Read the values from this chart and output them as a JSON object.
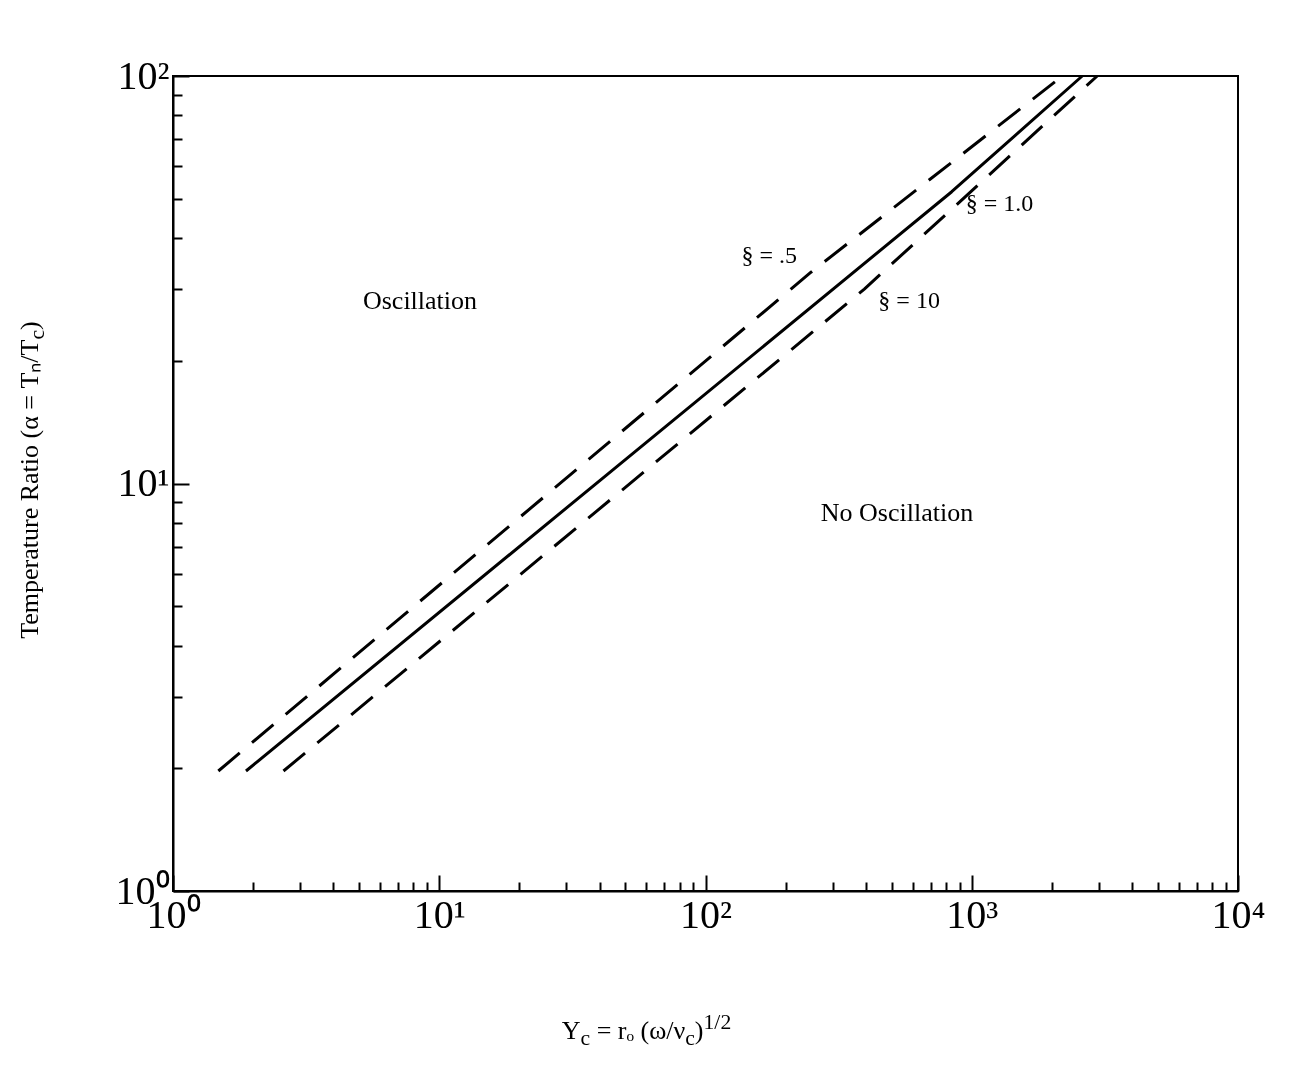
{
  "chart_data": {
    "type": "line",
    "xlabel": "Y$_{c}$ = rₒ (ω/ν$_{c}$)$^{1/2}$",
    "ylabel": "Temperature Ratio (α = Tₙ/T$_{c}$)",
    "log": "xy",
    "grid": false,
    "marker": "none",
    "xlim": [
      1,
      10000
    ],
    "ylim": [
      1,
      100
    ],
    "xticks": [
      {
        "value": 1,
        "label": "10⁰"
      },
      {
        "value": 2,
        "label": null
      },
      {
        "value": 3,
        "label": null
      },
      {
        "value": 4,
        "label": null
      },
      {
        "value": 5,
        "label": null
      },
      {
        "value": 6,
        "label": null
      },
      {
        "value": 7,
        "label": null
      },
      {
        "value": 8,
        "label": null
      },
      {
        "value": 9,
        "label": null
      },
      {
        "value": 10,
        "label": "10¹"
      },
      {
        "value": 20,
        "label": null
      },
      {
        "value": 30,
        "label": null
      },
      {
        "value": 40,
        "label": null
      },
      {
        "value": 50,
        "label": null
      },
      {
        "value": 60,
        "label": null
      },
      {
        "value": 70,
        "label": null
      },
      {
        "value": 80,
        "label": null
      },
      {
        "value": 90,
        "label": null
      },
      {
        "value": 100,
        "label": "10²"
      },
      {
        "value": 200,
        "label": null
      },
      {
        "value": 300,
        "label": null
      },
      {
        "value": 400,
        "label": null
      },
      {
        "value": 500,
        "label": null
      },
      {
        "value": 600,
        "label": null
      },
      {
        "value": 700,
        "label": null
      },
      {
        "value": 800,
        "label": null
      },
      {
        "value": 900,
        "label": null
      },
      {
        "value": 1000,
        "label": "10³"
      },
      {
        "value": 2000,
        "label": null
      },
      {
        "value": 3000,
        "label": null
      },
      {
        "value": 4000,
        "label": null
      },
      {
        "value": 5000,
        "label": null
      },
      {
        "value": 6000,
        "label": null
      },
      {
        "value": 7000,
        "label": null
      },
      {
        "value": 8000,
        "label": null
      },
      {
        "value": 9000,
        "label": null
      },
      {
        "value": 10000,
        "label": "10⁴"
      }
    ],
    "yticks": [
      {
        "value": 1,
        "label": "10⁰"
      },
      {
        "value": 2,
        "label": null
      },
      {
        "value": 3,
        "label": null
      },
      {
        "value": 4,
        "label": null
      },
      {
        "value": 5,
        "label": null
      },
      {
        "value": 6,
        "label": null
      },
      {
        "value": 7,
        "label": null
      },
      {
        "value": 8,
        "label": null
      },
      {
        "value": 9,
        "label": null
      },
      {
        "value": 10,
        "label": "10¹"
      },
      {
        "value": 20,
        "label": null
      },
      {
        "value": 30,
        "label": null
      },
      {
        "value": 40,
        "label": null
      },
      {
        "value": 50,
        "label": null
      },
      {
        "value": 60,
        "label": null
      },
      {
        "value": 70,
        "label": null
      },
      {
        "value": 80,
        "label": null
      },
      {
        "value": 90,
        "label": null
      },
      {
        "value": 100,
        "label": "10²"
      }
    ],
    "series": [
      {
        "name": "§ = .5",
        "color": "#000000",
        "line_style": "dashed",
        "x": [
          1.48,
          249,
          2190
        ],
        "values": [
          1.97,
          33,
          100
        ]
      },
      {
        "name": "§ = 1.0",
        "color": "#000000",
        "line_style": "solid",
        "x": [
          1.88,
          841,
          2600
        ],
        "values": [
          1.97,
          52,
          100
        ]
      },
      {
        "name": "§ = 10",
        "color": "#000000",
        "line_style": "dashed",
        "x": [
          2.6,
          395,
          2960
        ],
        "values": [
          1.97,
          30,
          100
        ]
      }
    ],
    "annotations": [
      "Oscillation",
      "No Oscillation"
    ]
  }
}
